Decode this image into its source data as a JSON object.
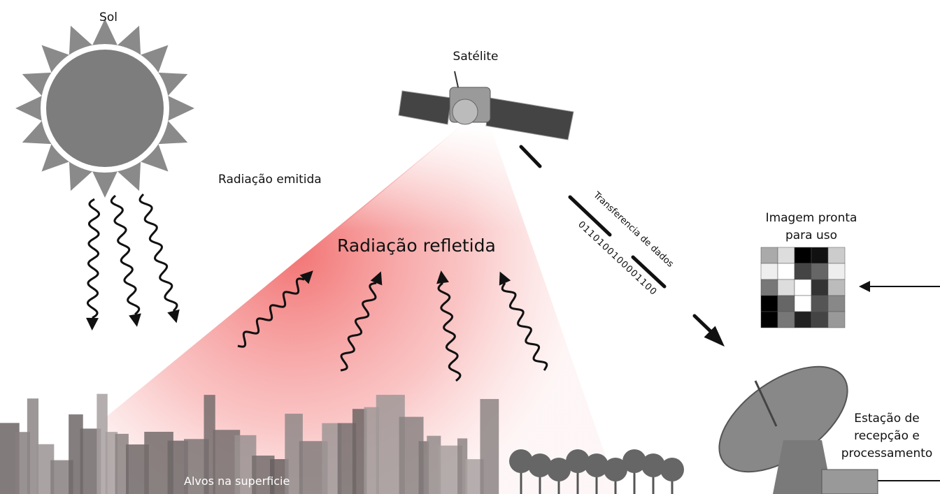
{
  "sun": {
    "label": "Sol"
  },
  "satellite": {
    "label": "Satélite"
  },
  "emitted": {
    "label": "Radiação emitida"
  },
  "reflected": {
    "label": "Radiação refletida"
  },
  "transfer": {
    "label": "Transferencia de dados",
    "bits": "0110100100001100"
  },
  "image": {
    "lines": [
      "Imagem pronta",
      "para uso"
    ]
  },
  "station": {
    "lines": [
      "Estação de",
      "recepção e",
      "processamento"
    ]
  },
  "targets": {
    "label": "Alvos na superficie"
  }
}
